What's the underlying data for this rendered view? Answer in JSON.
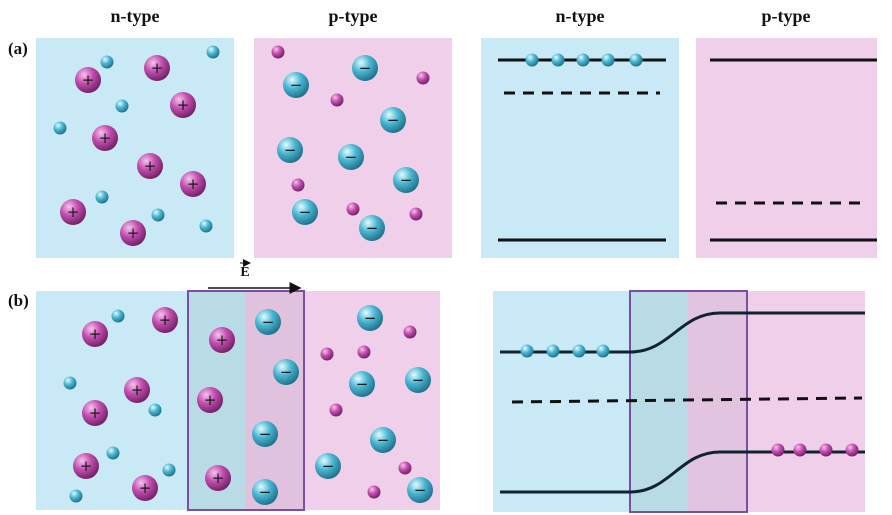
{
  "panels": {
    "a": {
      "label": "(a)"
    },
    "b": {
      "label": "(b)"
    }
  },
  "headers": [
    "n-type",
    "p-type",
    "n-type",
    "p-type"
  ],
  "field_label": "E",
  "ion_signs": {
    "donor": "+",
    "acceptor": "−"
  }
}
